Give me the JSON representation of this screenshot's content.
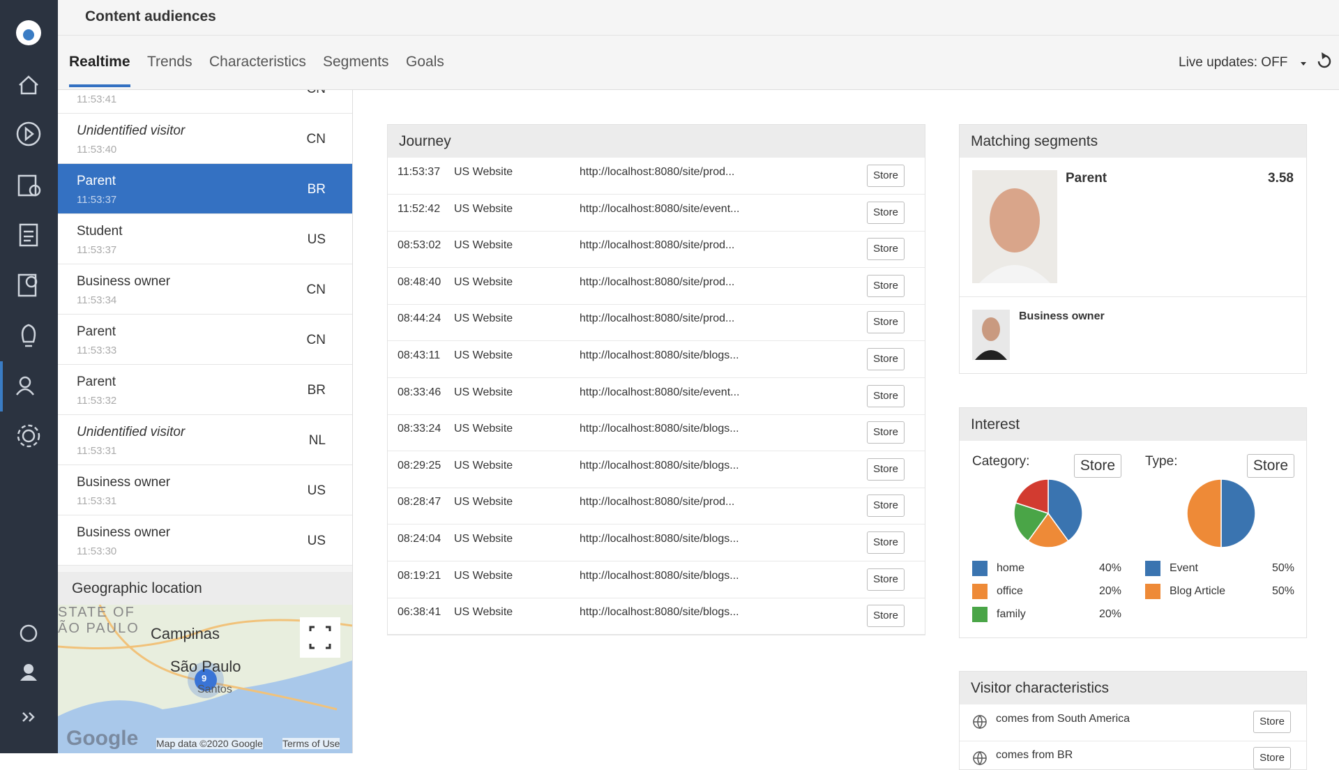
{
  "app": {
    "title": "Content audiences",
    "tabs": [
      "Realtime",
      "Trends",
      "Characteristics",
      "Segments",
      "Goals"
    ],
    "live_updates": "Live updates: OFF"
  },
  "visitors": [
    {
      "name": null,
      "time": "11:53:41",
      "country": "CN"
    },
    {
      "name": "Unidentified visitor",
      "time": "11:53:40",
      "country": "CN",
      "unidentified": true
    },
    {
      "name": "Parent",
      "time": "11:53:37",
      "country": "BR",
      "selected": true
    },
    {
      "name": "Student",
      "time": "11:53:37",
      "country": "US"
    },
    {
      "name": "Business owner",
      "time": "11:53:34",
      "country": "CN"
    },
    {
      "name": "Parent",
      "time": "11:53:33",
      "country": "CN"
    },
    {
      "name": "Parent",
      "time": "11:53:32",
      "country": "BR"
    },
    {
      "name": "Unidentified visitor",
      "time": "11:53:31",
      "country": "NL",
      "unidentified": true
    },
    {
      "name": "Business owner",
      "time": "11:53:31",
      "country": "US"
    },
    {
      "name": "Business owner",
      "time": "11:53:30",
      "country": "US"
    }
  ],
  "geo": {
    "title": "Geographic location",
    "labels": [
      "STATE OF",
      "ÃO PAULO",
      "Campinas",
      "São Paulo",
      "Santos"
    ],
    "cluster": "9",
    "google": "Google",
    "map_data": "Map data ©2020 Google",
    "terms": "Terms of Use"
  },
  "journey": {
    "title": "Journey",
    "button": "Store",
    "rows": [
      {
        "time": "11:53:37",
        "site": "US Website",
        "url": "http://localhost:8080/site/prod..."
      },
      {
        "time": "11:52:42",
        "site": "US Website",
        "url": "http://localhost:8080/site/event..."
      },
      {
        "time": "08:53:02",
        "site": "US Website",
        "url": "http://localhost:8080/site/prod..."
      },
      {
        "time": "08:48:40",
        "site": "US Website",
        "url": "http://localhost:8080/site/prod..."
      },
      {
        "time": "08:44:24",
        "site": "US Website",
        "url": "http://localhost:8080/site/prod..."
      },
      {
        "time": "08:43:11",
        "site": "US Website",
        "url": "http://localhost:8080/site/blogs..."
      },
      {
        "time": "08:33:46",
        "site": "US Website",
        "url": "http://localhost:8080/site/event..."
      },
      {
        "time": "08:33:24",
        "site": "US Website",
        "url": "http://localhost:8080/site/blogs..."
      },
      {
        "time": "08:29:25",
        "site": "US Website",
        "url": "http://localhost:8080/site/blogs..."
      },
      {
        "time": "08:28:47",
        "site": "US Website",
        "url": "http://localhost:8080/site/prod..."
      },
      {
        "time": "08:24:04",
        "site": "US Website",
        "url": "http://localhost:8080/site/blogs..."
      },
      {
        "time": "08:19:21",
        "site": "US Website",
        "url": "http://localhost:8080/site/blogs..."
      },
      {
        "time": "06:38:41",
        "site": "US Website",
        "url": "http://localhost:8080/site/blogs..."
      }
    ]
  },
  "matching_segments": {
    "title": "Matching segments",
    "items": [
      {
        "name": "Parent",
        "score": "3.58"
      },
      {
        "name": "Business owner"
      }
    ]
  },
  "interest": {
    "title": "Interest",
    "button": "Store"
  },
  "chart_data": [
    {
      "type": "pie",
      "title": "Category:",
      "categories": [
        "home",
        "office",
        "family",
        null
      ],
      "values": [
        40,
        20,
        20,
        20
      ],
      "value_labels": [
        "40%",
        "20%",
        "20%",
        null
      ],
      "colors": [
        "#3a74b0",
        "#ee8a37",
        "#4aa547",
        "#d23b30"
      ]
    },
    {
      "type": "pie",
      "title": "Type:",
      "categories": [
        "Event",
        "Blog Article"
      ],
      "values": [
        50,
        50
      ],
      "value_labels": [
        "50%",
        "50%"
      ],
      "colors": [
        "#3a74b0",
        "#ee8a37"
      ]
    }
  ],
  "visitor_characteristics": {
    "title": "Visitor characteristics",
    "button": "Store",
    "items": [
      "comes from South America",
      "comes from BR"
    ]
  }
}
